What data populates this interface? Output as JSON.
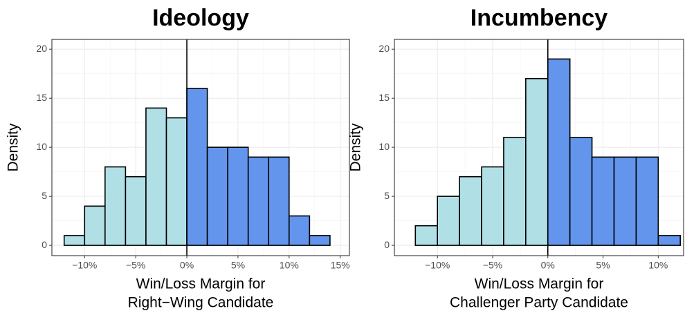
{
  "chart_data": [
    {
      "type": "histogram",
      "title": "Ideology",
      "xlabel": [
        "Win/Loss Margin for",
        "Right−Wing Candidate"
      ],
      "ylabel": "Density",
      "bins": [
        -12,
        -10,
        -8,
        -6,
        -4,
        -2,
        0,
        2,
        4,
        6,
        8,
        10,
        12,
        14
      ],
      "values": [
        1,
        4,
        8,
        7,
        14,
        13,
        16,
        10,
        10,
        9,
        9,
        3,
        1
      ],
      "colors": [
        "#b0e0e6",
        "#b0e0e6",
        "#b0e0e6",
        "#b0e0e6",
        "#b0e0e6",
        "#b0e0e6",
        "#6495ed",
        "#6495ed",
        "#6495ed",
        "#6495ed",
        "#6495ed",
        "#6495ed",
        "#6495ed"
      ],
      "xlim": [
        -13.2,
        15.9
      ],
      "ylim": [
        -1.05,
        21
      ],
      "xticks": [
        {
          "value": -10,
          "label": "−10%"
        },
        {
          "value": -5,
          "label": "−5%"
        },
        {
          "value": 0,
          "label": "0%"
        },
        {
          "value": 5,
          "label": "5%"
        },
        {
          "value": 10,
          "label": "10%"
        },
        {
          "value": 15,
          "label": "15%"
        }
      ],
      "yticks": [
        0,
        5,
        10,
        15,
        20
      ],
      "vline": 0,
      "grid": true
    },
    {
      "type": "histogram",
      "title": "Incumbency",
      "xlabel": [
        "Win/Loss Margin for",
        "Challenger Party Candidate"
      ],
      "ylabel": "Density",
      "bins": [
        -12,
        -10,
        -8,
        -6,
        -4,
        -2,
        0,
        2,
        4,
        6,
        8,
        10,
        12
      ],
      "values": [
        2,
        5,
        7,
        8,
        11,
        17,
        19,
        11,
        9,
        9,
        9,
        1
      ],
      "colors": [
        "#b0e0e6",
        "#b0e0e6",
        "#b0e0e6",
        "#b0e0e6",
        "#b0e0e6",
        "#b0e0e6",
        "#6495ed",
        "#6495ed",
        "#6495ed",
        "#6495ed",
        "#6495ed",
        "#6495ed"
      ],
      "xlim": [
        -13.9,
        12.3
      ],
      "ylim": [
        -1.05,
        21
      ],
      "xticks": [
        {
          "value": -10,
          "label": "−10%"
        },
        {
          "value": -5,
          "label": "−5%"
        },
        {
          "value": 0,
          "label": "0%"
        },
        {
          "value": 5,
          "label": "5%"
        },
        {
          "value": 10,
          "label": "10%"
        }
      ],
      "yticks": [
        0,
        5,
        10,
        15,
        20
      ],
      "vline": 0,
      "grid": true
    }
  ]
}
